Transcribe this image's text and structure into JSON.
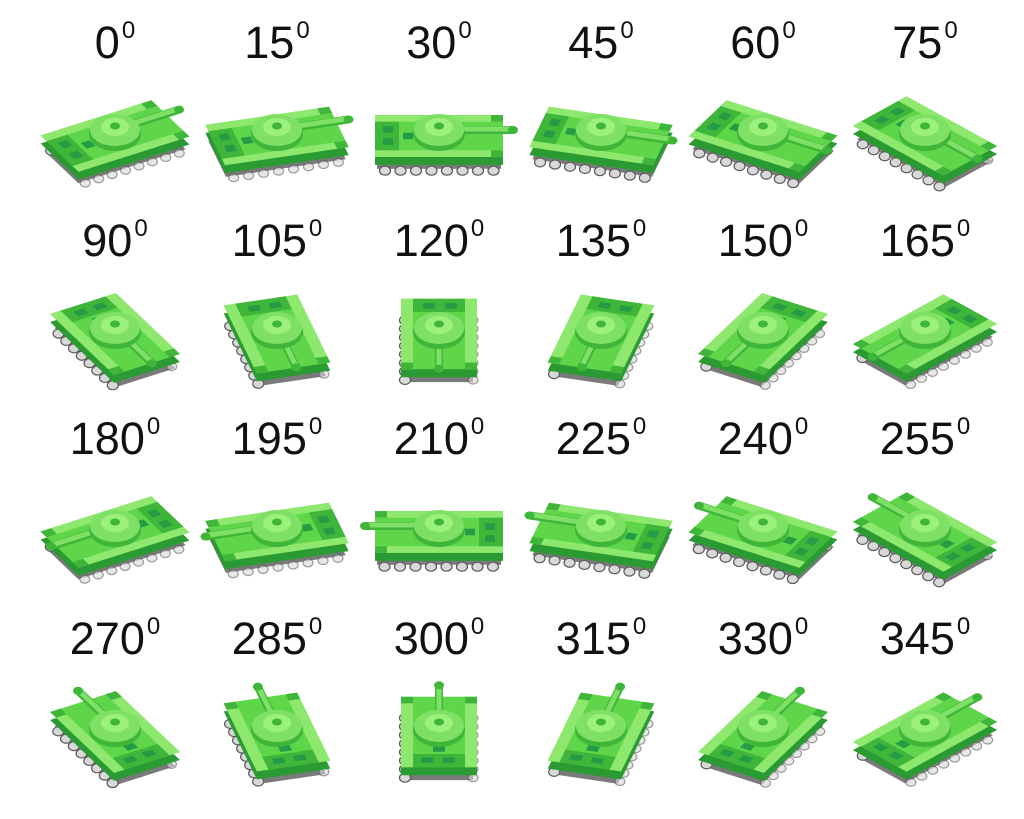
{
  "colors": {
    "hull_light": "#8ee86e",
    "hull": "#5fd64a",
    "hull_dark": "#3fb63a",
    "hull_shadow": "#2a9a32",
    "turret": "#7fe066",
    "turret_top": "#9cf07c",
    "window": "#239c45",
    "track": "#7a7a7a",
    "wheel": "#d8d8d8",
    "wheel_edge": "#5a5a5a",
    "label": "#111111"
  },
  "sprite_icon": "tank-sprite-icon",
  "degree_marker": "0",
  "frames": [
    {
      "angle": 0,
      "label": "0"
    },
    {
      "angle": 15,
      "label": "15"
    },
    {
      "angle": 30,
      "label": "30"
    },
    {
      "angle": 45,
      "label": "45"
    },
    {
      "angle": 60,
      "label": "60"
    },
    {
      "angle": 75,
      "label": "75"
    },
    {
      "angle": 90,
      "label": "90"
    },
    {
      "angle": 105,
      "label": "105"
    },
    {
      "angle": 120,
      "label": "120"
    },
    {
      "angle": 135,
      "label": "135"
    },
    {
      "angle": 150,
      "label": "150"
    },
    {
      "angle": 165,
      "label": "165"
    },
    {
      "angle": 180,
      "label": "180"
    },
    {
      "angle": 195,
      "label": "195"
    },
    {
      "angle": 210,
      "label": "210"
    },
    {
      "angle": 225,
      "label": "225"
    },
    {
      "angle": 240,
      "label": "240"
    },
    {
      "angle": 255,
      "label": "255"
    },
    {
      "angle": 270,
      "label": "270"
    },
    {
      "angle": 285,
      "label": "285"
    },
    {
      "angle": 300,
      "label": "300"
    },
    {
      "angle": 315,
      "label": "315"
    },
    {
      "angle": 330,
      "label": "330"
    },
    {
      "angle": 345,
      "label": "345"
    }
  ]
}
